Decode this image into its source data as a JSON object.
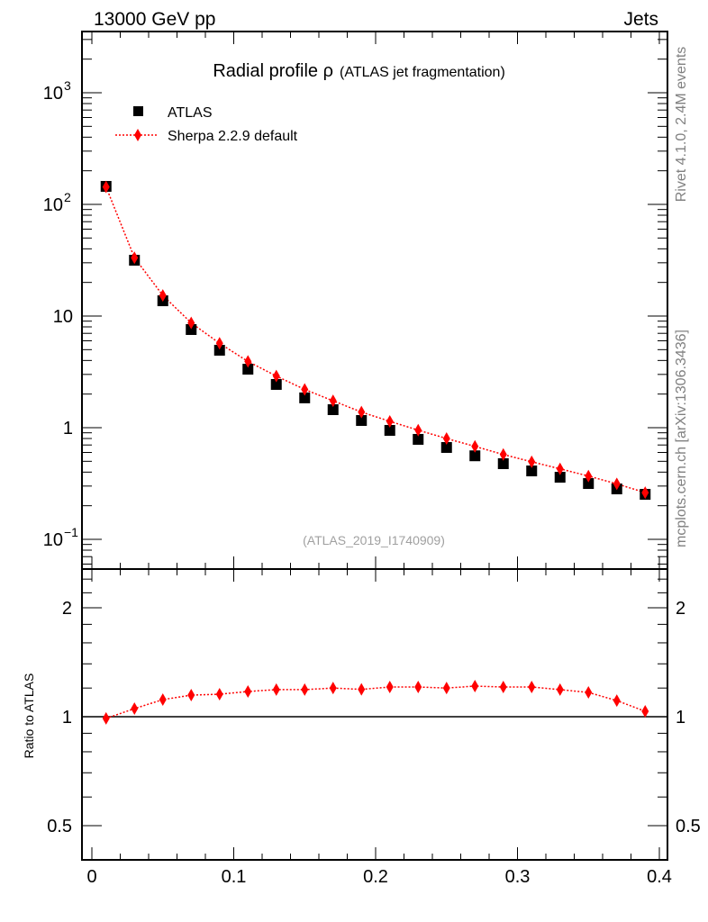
{
  "header": {
    "left": "13000 GeV pp",
    "right": "Jets"
  },
  "side_labels": {
    "rivet": "Rivet 4.1.0,  2.4M events",
    "mcplots": "mcplots.cern.ch [arXiv:1306.3436]"
  },
  "chart_data": [
    {
      "type": "scatter",
      "title": "Radial profile ρ",
      "subtitle": "(ATLAS jet fragmentation)",
      "analysis_label": "(ATLAS_2019_I1740909)",
      "xlabel": "",
      "ylabel": "",
      "xlim": [
        0,
        0.4
      ],
      "ylim": [
        0.054,
        3500
      ],
      "yscale": "log",
      "yticks": [
        {
          "v": 1000,
          "base": "10",
          "exp": "3"
        },
        {
          "v": 100,
          "base": "10",
          "exp": "2"
        },
        {
          "v": 10,
          "base": "10",
          "exp": ""
        },
        {
          "v": 1,
          "base": "1",
          "exp": ""
        },
        {
          "v": 0.1,
          "base": "10",
          "exp": "−1"
        }
      ],
      "legend": {
        "position": "top-left",
        "entries": [
          "ATLAS",
          "Sherpa 2.2.9 default"
        ]
      },
      "x": [
        0.01,
        0.03,
        0.05,
        0.07,
        0.09,
        0.11,
        0.13,
        0.15,
        0.17,
        0.19,
        0.21,
        0.23,
        0.25,
        0.27,
        0.29,
        0.31,
        0.33,
        0.35,
        0.37,
        0.39
      ],
      "series": [
        {
          "name": "ATLAS",
          "color": "#000000",
          "marker": "square",
          "values": [
            145,
            31.6,
            13.7,
            7.57,
            4.94,
            3.34,
            2.44,
            1.85,
            1.45,
            1.16,
            0.946,
            0.786,
            0.665,
            0.56,
            0.476,
            0.41,
            0.36,
            0.316,
            0.283,
            0.253
          ]
        },
        {
          "name": "Sherpa 2.2.9 default",
          "color": "#ff0000",
          "marker": "diamond",
          "line": "dotted",
          "values": [
            143.4,
            33.3,
            15.3,
            8.68,
            5.7,
            3.92,
            2.9,
            2.2,
            1.74,
            1.38,
            1.14,
            0.95,
            0.8,
            0.68,
            0.575,
            0.495,
            0.428,
            0.369,
            0.314,
            0.262
          ]
        }
      ]
    },
    {
      "type": "line",
      "ylabel": "Ratio to ATLAS",
      "xlim": [
        0,
        0.4
      ],
      "ylim": [
        0.4,
        2.56
      ],
      "yscale": "log",
      "yticks": [
        {
          "v": 2,
          "label": "2"
        },
        {
          "v": 1,
          "label": "1"
        },
        {
          "v": 0.5,
          "label": "0.5"
        }
      ],
      "xticks": [
        {
          "v": 0,
          "label": "0"
        },
        {
          "v": 0.1,
          "label": "0.1"
        },
        {
          "v": 0.2,
          "label": "0.2"
        },
        {
          "v": 0.3,
          "label": "0.3"
        },
        {
          "v": 0.4,
          "label": "0.4"
        }
      ],
      "x": [
        0.01,
        0.03,
        0.05,
        0.07,
        0.09,
        0.11,
        0.13,
        0.15,
        0.17,
        0.19,
        0.21,
        0.23,
        0.25,
        0.27,
        0.29,
        0.31,
        0.33,
        0.35,
        0.37,
        0.39
      ],
      "series": [
        {
          "name": "Sherpa 2.2.9 default / ATLAS",
          "color": "#ff0000",
          "values": [
            0.989,
            1.053,
            1.115,
            1.147,
            1.154,
            1.174,
            1.188,
            1.188,
            1.2,
            1.19,
            1.208,
            1.208,
            1.2,
            1.215,
            1.208,
            1.208,
            1.188,
            1.167,
            1.108,
            1.035
          ]
        }
      ]
    }
  ]
}
